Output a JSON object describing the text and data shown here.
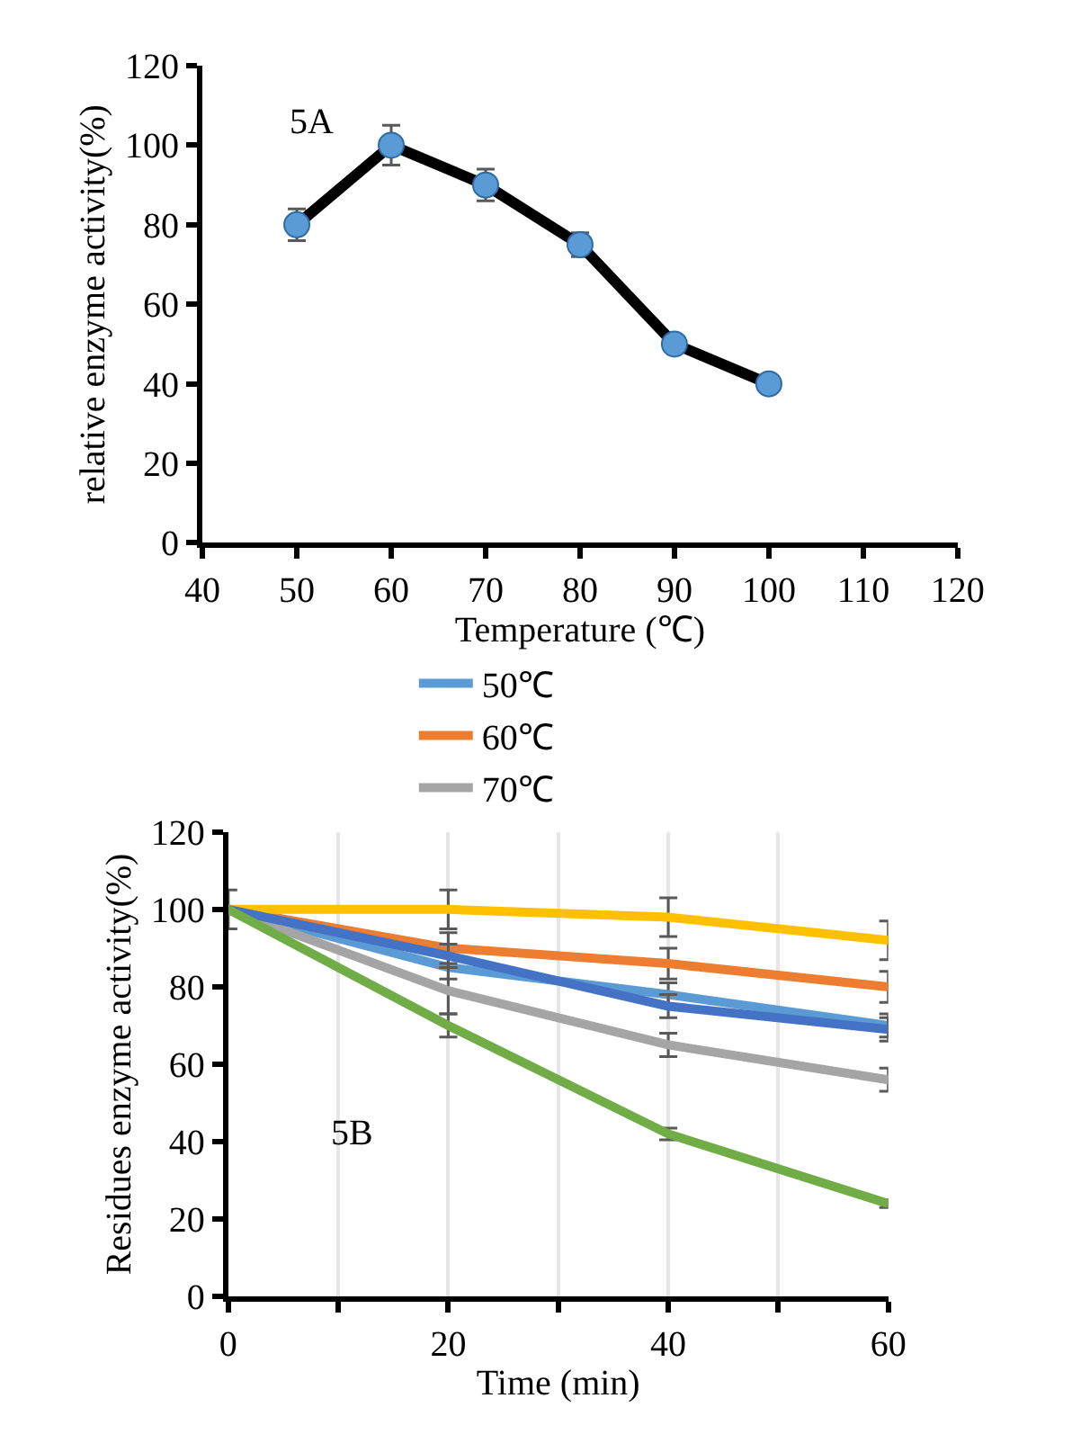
{
  "chart_data": [
    {
      "type": "line",
      "xlabel": "Temperature (℃)",
      "ylabel": "relative enzyme activity(%)",
      "annotations": [
        "5A"
      ],
      "x": [
        50,
        60,
        70,
        80,
        90,
        100
      ],
      "series": [
        {
          "color": "#000000",
          "values": [
            80,
            100,
            90,
            75,
            50,
            40
          ],
          "errors": [
            4,
            5,
            4,
            3,
            null,
            null
          ]
        }
      ],
      "xlim": [
        40,
        120
      ],
      "xticks": [
        40,
        50,
        60,
        70,
        80,
        90,
        100,
        110,
        120
      ],
      "ylim": [
        0,
        120
      ],
      "yticks": [
        0,
        20,
        40,
        60,
        80,
        100,
        120
      ],
      "grid": false,
      "legend": false,
      "marker": "circle"
    },
    {
      "type": "line",
      "xlabel": "Time (min)",
      "ylabel": "Residues enzyme activity(%)",
      "annotations": [
        "5B"
      ],
      "x": [
        0,
        20,
        40,
        60
      ],
      "series": [
        {
          "name": "50℃",
          "color": "#5b9bd5",
          "values": [
            100,
            85,
            78,
            70
          ],
          "errors": [
            null,
            3,
            3,
            3
          ]
        },
        {
          "name": "60℃",
          "color": "#ed7d31",
          "values": [
            100,
            90,
            86,
            80
          ],
          "errors": [
            null,
            4,
            4,
            4
          ]
        },
        {
          "name": "70℃",
          "color": "#a5a5a5",
          "values": [
            100,
            79,
            65,
            56
          ],
          "errors": [
            null,
            6,
            3,
            3
          ]
        },
        {
          "color": "#ffc000",
          "values": [
            100,
            100,
            98,
            92
          ],
          "errors": [
            5,
            5,
            5,
            5
          ]
        },
        {
          "color": "#4472c4",
          "values": [
            100,
            88,
            75,
            69
          ],
          "errors": [
            null,
            3,
            3,
            3
          ]
        },
        {
          "color": "#70ad47",
          "values": [
            100,
            70,
            42,
            24
          ],
          "errors": [
            null,
            3,
            1.5,
            1
          ]
        }
      ],
      "xlim": [
        0,
        60
      ],
      "xticks": [
        0,
        {
          "value": 10,
          "label": null
        },
        20,
        {
          "value": 30,
          "label": null
        },
        40,
        {
          "value": 50,
          "label": null
        },
        60
      ],
      "ylim": [
        0,
        120
      ],
      "yticks": [
        0,
        20,
        40,
        60,
        80,
        100,
        120
      ],
      "grid": "x",
      "legend": "top"
    }
  ]
}
